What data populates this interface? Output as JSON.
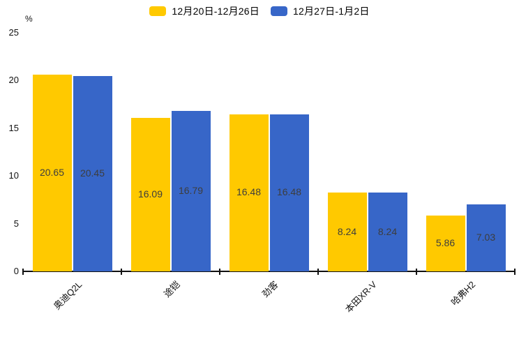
{
  "chart_data": {
    "type": "bar",
    "title": "",
    "categories": [
      "奥迪Q2L",
      "途铠",
      "劲客",
      "本田XR-V",
      "哈弗H2"
    ],
    "series": [
      {
        "name": "12月20日-12月26日",
        "color": "#FFC900",
        "values": [
          20.65,
          16.09,
          16.48,
          8.24,
          5.86
        ]
      },
      {
        "name": "12月27日-1月2日",
        "color": "#3766C8",
        "values": [
          20.45,
          16.79,
          16.48,
          8.24,
          7.03
        ]
      }
    ],
    "value_labels": [
      "20.65",
      "16.09",
      "16.48",
      "8.24",
      "5.86",
      "20.45",
      "16.79",
      "16.48",
      "8.24",
      "7.03"
    ],
    "ylabel": "%",
    "xlabel": "",
    "yticks": [
      0,
      5,
      10,
      15,
      20,
      25
    ],
    "ylim": [
      0,
      25
    ],
    "grid": false,
    "legend_position": "top",
    "colors": {
      "series1": "#FFC900",
      "series2": "#3766C8",
      "axis": "#111111",
      "value_label": "#3d3d3d"
    }
  }
}
